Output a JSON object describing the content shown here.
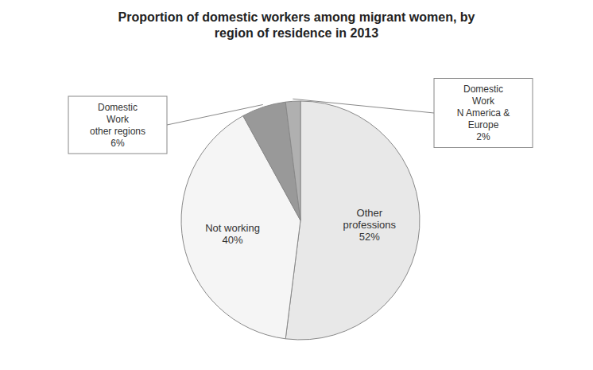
{
  "chart_data": {
    "type": "pie",
    "title": "Proportion of domestic workers among migrant women, by\nregion of residence in 2013",
    "categories": [
      "Other\nprofessions\n52%",
      "Not working\n40%",
      "Domestic\nWork\nother regions\n6%",
      "Domestic\nWork\nN America &\nEurope\n2%"
    ],
    "values": [
      52,
      40,
      6,
      2
    ],
    "colors": [
      "#e8e8e8",
      "#f5f5f5",
      "#999999",
      "#b0b0b0"
    ]
  }
}
